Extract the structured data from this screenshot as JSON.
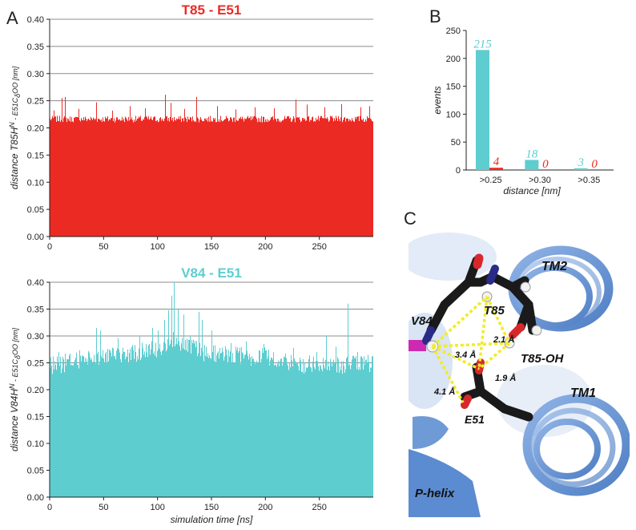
{
  "panels": {
    "a": "A",
    "b": "B",
    "c": "C"
  },
  "colors": {
    "red": "#ec2a24",
    "cyan": "#5ecdd0",
    "grid": "#8c8c8c"
  },
  "chart_data": [
    {
      "type": "bar",
      "title": "T85 - E51",
      "ylabel": {
        "pre": "distance T85H",
        "sup1": "N",
        "mid": " - E51C",
        "sub": "δ",
        "post": "OO [nm]"
      },
      "xlabel": "",
      "xlim": [
        0,
        300
      ],
      "ylim": [
        0,
        0.4
      ],
      "xticks": [
        0,
        50,
        100,
        150,
        200,
        250
      ],
      "yticks": [
        "0.00",
        "0.05",
        "0.10",
        "0.15",
        "0.20",
        "0.25",
        "0.30",
        "0.35",
        "0.40"
      ],
      "grid": "horizontal",
      "series": [
        {
          "color": "#ec2a24",
          "baseline": 0.215,
          "band": 0.012,
          "spikes": [
            [
              4,
              0.232
            ],
            [
              11,
              0.255
            ],
            [
              14,
              0.257
            ],
            [
              27,
              0.235
            ],
            [
              43,
              0.247
            ],
            [
              58,
              0.232
            ],
            [
              74,
              0.24
            ],
            [
              88,
              0.236
            ],
            [
              107,
              0.261
            ],
            [
              112,
              0.246
            ],
            [
              125,
              0.235
            ],
            [
              136,
              0.257
            ],
            [
              155,
              0.24
            ],
            [
              172,
              0.234
            ],
            [
              190,
              0.238
            ],
            [
              208,
              0.236
            ],
            [
              228,
              0.252
            ],
            [
              238,
              0.243
            ],
            [
              255,
              0.238
            ],
            [
              270,
              0.244
            ],
            [
              288,
              0.238
            ],
            [
              296,
              0.24
            ]
          ]
        }
      ]
    },
    {
      "type": "bar",
      "title": "V84 - E51",
      "ylabel": {
        "pre": "distance V84H",
        "sup1": "N",
        "mid": " - E51C",
        "sub": "δ",
        "post": "OO [nm]"
      },
      "xlabel": "simulation time [ns]",
      "xlim": [
        0,
        300
      ],
      "ylim": [
        0,
        0.4
      ],
      "xticks": [
        0,
        50,
        100,
        150,
        200,
        250
      ],
      "yticks": [
        "0.00",
        "0.05",
        "0.10",
        "0.15",
        "0.20",
        "0.25",
        "0.30",
        "0.35",
        "0.40"
      ],
      "grid": "horizontal",
      "series": [
        {
          "color": "#5ecdd0",
          "profile": [
            [
              0,
              0.235
            ],
            [
              20,
              0.245
            ],
            [
              40,
              0.255
            ],
            [
              60,
              0.255
            ],
            [
              80,
              0.26
            ],
            [
              100,
              0.27
            ],
            [
              112,
              0.285
            ],
            [
              125,
              0.28
            ],
            [
              145,
              0.26
            ],
            [
              160,
              0.258
            ],
            [
              180,
              0.255
            ],
            [
              200,
              0.255
            ],
            [
              215,
              0.25
            ],
            [
              230,
              0.24
            ],
            [
              260,
              0.237
            ],
            [
              300,
              0.24
            ]
          ],
          "spikes": [
            [
              3,
              0.262
            ],
            [
              8,
              0.27
            ],
            [
              18,
              0.264
            ],
            [
              43,
              0.315
            ],
            [
              47,
              0.31
            ],
            [
              63,
              0.296
            ],
            [
              83,
              0.3
            ],
            [
              95,
              0.315
            ],
            [
              100,
              0.31
            ],
            [
              106,
              0.33
            ],
            [
              110,
              0.348
            ],
            [
              113,
              0.375
            ],
            [
              115,
              0.4
            ],
            [
              119,
              0.35
            ],
            [
              124,
              0.34
            ],
            [
              130,
              0.3
            ],
            [
              138,
              0.345
            ],
            [
              141,
              0.33
            ],
            [
              150,
              0.31
            ],
            [
              168,
              0.287
            ],
            [
              182,
              0.29
            ],
            [
              198,
              0.285
            ],
            [
              226,
              0.278
            ],
            [
              247,
              0.27
            ],
            [
              256,
              0.3
            ],
            [
              265,
              0.28
            ],
            [
              276,
              0.36
            ],
            [
              285,
              0.27
            ],
            [
              295,
              0.265
            ]
          ]
        }
      ]
    },
    {
      "type": "bar",
      "title": "",
      "ylabel": "events",
      "xlabel": "distance [nm]",
      "categories": [
        ">0.25",
        ">0.30",
        ">0.35"
      ],
      "ylim": [
        0,
        250
      ],
      "yticks": [
        0,
        50,
        100,
        150,
        200,
        250
      ],
      "series": [
        {
          "color": "#5ecdd0",
          "values": [
            215,
            18,
            3
          ]
        },
        {
          "color": "#ec2a24",
          "values": [
            4,
            0,
            0
          ]
        }
      ]
    }
  ],
  "structure": {
    "labels": [
      "TM2",
      "T85",
      "V84",
      "T85-OH",
      "TM1",
      "E51",
      "P-helix"
    ],
    "distances": [
      "3.4 Å",
      "2.1 Å",
      "1.9 Å",
      "4.1 Å"
    ]
  }
}
